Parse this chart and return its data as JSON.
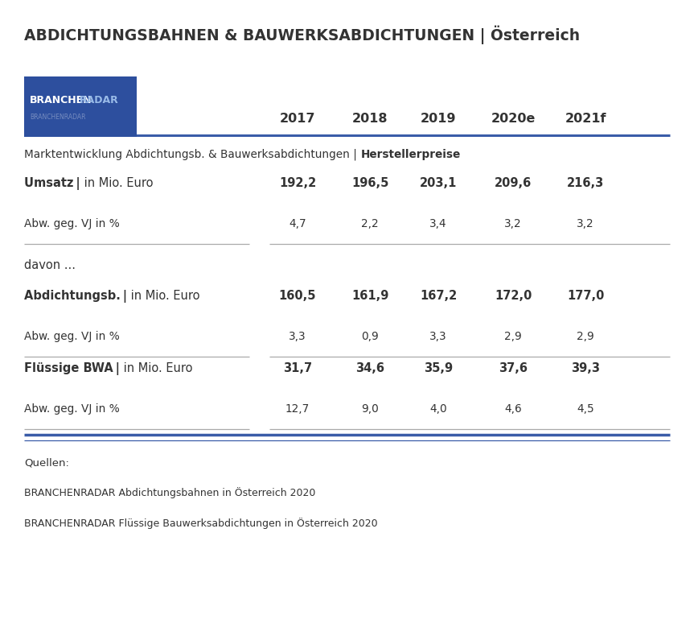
{
  "title": "ABDICHTUNGSBAHNEN & BAUWERKSABDICHTUNGEN | Österreich",
  "years": [
    "2017",
    "2018",
    "2019",
    "2020e",
    "2021f"
  ],
  "subtitle_normal": "Marktentwicklung Abdichtungsb. & Bauwerksabdichtungen | ",
  "subtitle_bold": "Herstellerpreise",
  "rows": [
    {
      "label_bold": "Umsatz |",
      "label_normal": " in Mio. Euro",
      "values": [
        "192,2",
        "196,5",
        "203,1",
        "209,6",
        "216,3"
      ],
      "bold_values": true,
      "type": "main"
    },
    {
      "label_bold": "",
      "label_normal": "Abw. geg. VJ in %",
      "values": [
        "4,7",
        "2,2",
        "3,4",
        "3,2",
        "3,2"
      ],
      "bold_values": false,
      "type": "sub"
    },
    {
      "label_bold": "",
      "label_normal": "davon ...",
      "values": [
        "",
        "",
        "",
        "",
        ""
      ],
      "bold_values": false,
      "type": "section"
    },
    {
      "label_bold": "Abdichtungsb. |",
      "label_normal": " in Mio. Euro",
      "values": [
        "160,5",
        "161,9",
        "167,2",
        "172,0",
        "177,0"
      ],
      "bold_values": true,
      "type": "main"
    },
    {
      "label_bold": "",
      "label_normal": "Abw. geg. VJ in %",
      "values": [
        "3,3",
        "0,9",
        "3,3",
        "2,9",
        "2,9"
      ],
      "bold_values": false,
      "type": "sub"
    },
    {
      "label_bold": "Flüssige BWA |",
      "label_normal": " in Mio. Euro",
      "values": [
        "31,7",
        "34,6",
        "35,9",
        "37,6",
        "39,3"
      ],
      "bold_values": true,
      "type": "main"
    },
    {
      "label_bold": "",
      "label_normal": "Abw. geg. VJ in %",
      "values": [
        "12,7",
        "9,0",
        "4,0",
        "4,6",
        "4,5"
      ],
      "bold_values": false,
      "type": "sub"
    }
  ],
  "footer_lines": [
    "Quellen:",
    "BRANCHENRADAR Abdichtungsbahnen in Österreich 2020",
    "BRANCHENRADAR Flüssige Bauwerksabdichtungen in Österreich 2020"
  ],
  "logo_bg_color": "#2d4f9e",
  "text_color": "#333333",
  "line_color": "#3a5ca8",
  "light_line_color": "#aaaaaa",
  "background_color": "#ffffff"
}
